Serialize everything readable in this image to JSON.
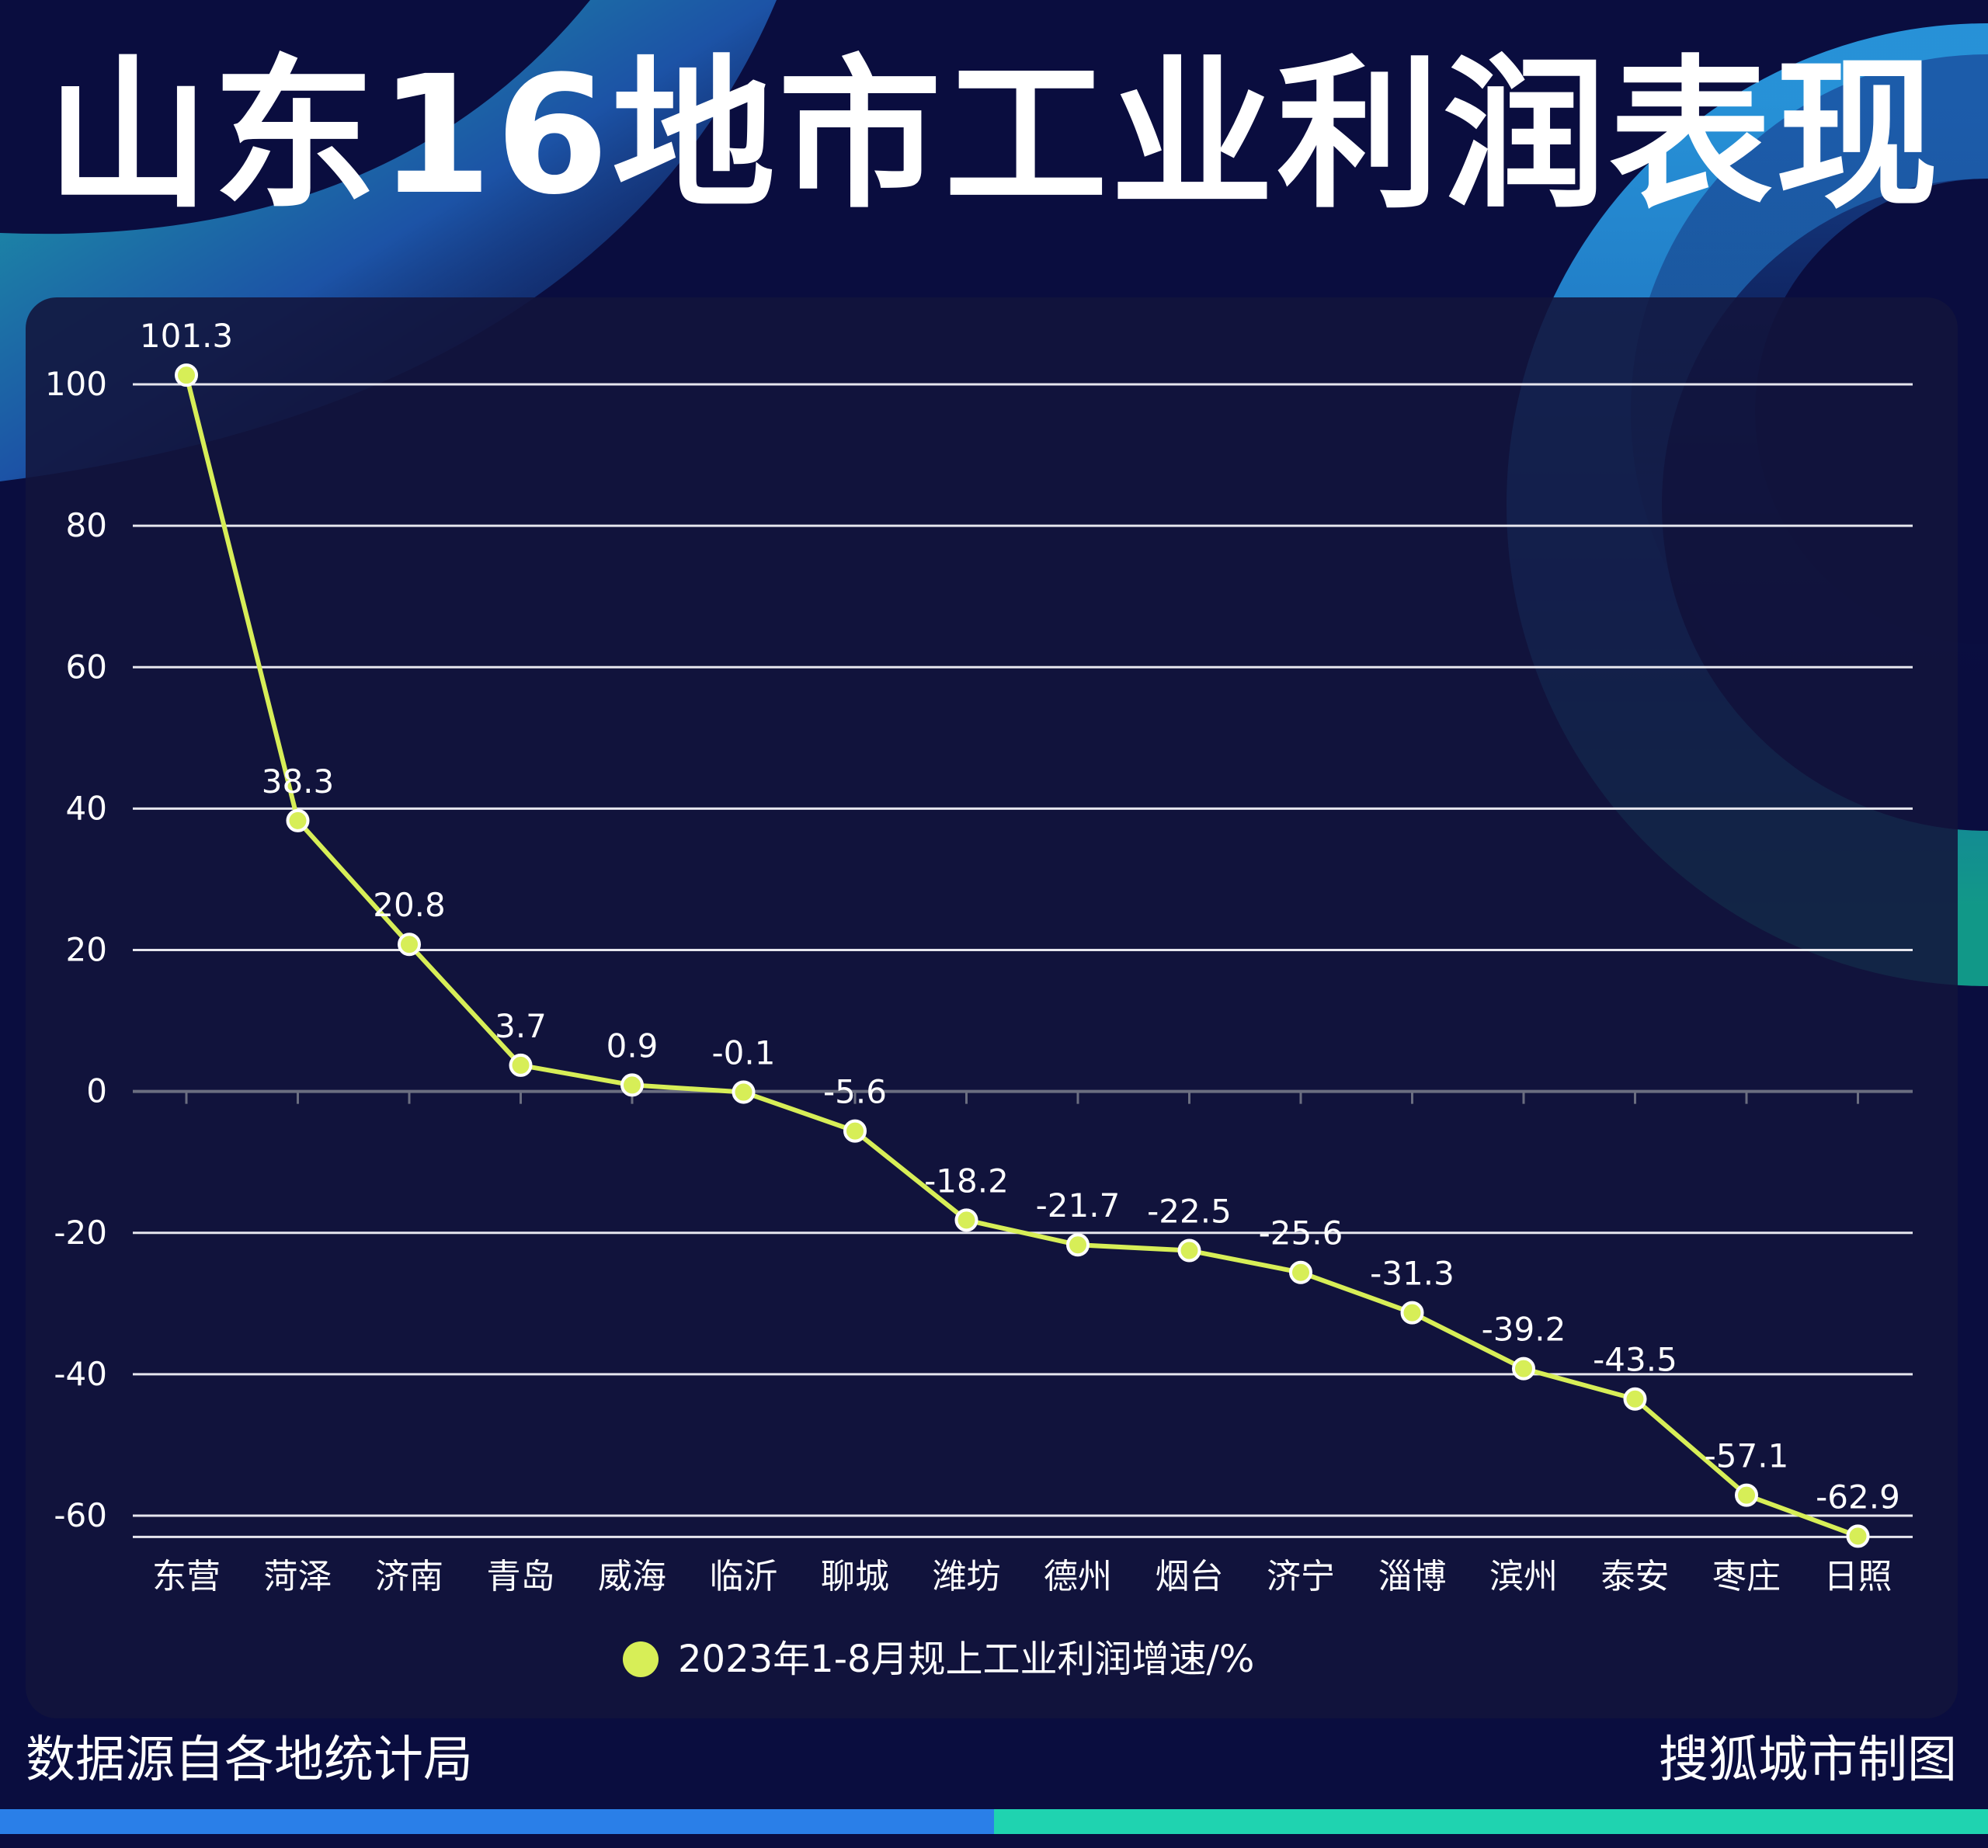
{
  "title": "山东16地市工业利润表现",
  "footer": {
    "source": "数据源自各地统计局",
    "credit": "搜狐城市制图"
  },
  "colors": {
    "background": "#0a0d3f",
    "panel": "#12143c",
    "line": "#d7ee57",
    "text": "#ffffff"
  },
  "chart_data": {
    "type": "line",
    "categories": [
      "东营",
      "菏泽",
      "济南",
      "青岛",
      "威海",
      "临沂",
      "聊城",
      "潍坊",
      "德州",
      "烟台",
      "济宁",
      "淄博",
      "滨州",
      "泰安",
      "枣庄",
      "日照"
    ],
    "series": [
      {
        "name": "2023年1-8月规上工业利润增速/%",
        "values": [
          101.3,
          38.3,
          20.8,
          3.7,
          0.9,
          -0.1,
          -5.6,
          -18.2,
          -21.7,
          -22.5,
          -25.6,
          -31.3,
          -39.2,
          -43.5,
          -57.1,
          -62.9
        ],
        "labels": [
          "101.3",
          "38.3",
          "20.8",
          "3.7",
          "0.9",
          "-0.1",
          "-5.6",
          "-18.2",
          "-21.7",
          "-22.5",
          "-25.6",
          "-31.3",
          "-39.2",
          "-43.5",
          "-57.1",
          "-62.9"
        ]
      }
    ],
    "yticks": [
      "100",
      "80",
      "60",
      "40",
      "20",
      "0",
      "-20",
      "-40",
      "-60"
    ],
    "ylim": [
      -63,
      100
    ],
    "grid": true,
    "legend": "bottom-center"
  }
}
